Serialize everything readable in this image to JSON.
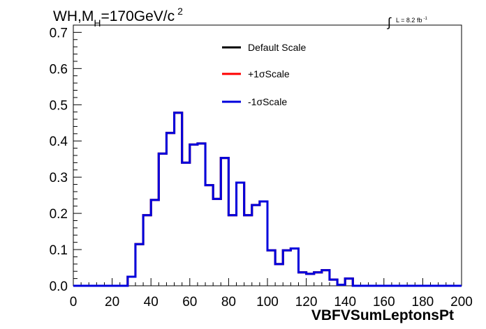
{
  "chart_data": {
    "type": "line",
    "title_main": "WH,M",
    "title_sub": "H",
    "title_rest": "=170GeV/c",
    "title_sup": "2",
    "lumi_text": "L = 8.2 fb",
    "lumi_sup": "-1",
    "xlabel": "VBFVSumLeptonsPt",
    "ylabel": "",
    "xlim": [
      0,
      200
    ],
    "ylim": [
      0,
      0.72
    ],
    "xticks": [
      "0",
      "20",
      "40",
      "60",
      "80",
      "100",
      "120",
      "140",
      "160",
      "180",
      "200"
    ],
    "yticks": [
      "0.0",
      "0.1",
      "0.2",
      "0.3",
      "0.4",
      "0.5",
      "0.6",
      "0.7"
    ],
    "bin_width": 4,
    "bin_edges_start": 0,
    "legend_position": "top-center",
    "series": [
      {
        "name": "Default Scale",
        "color": "#000000",
        "values": [
          0,
          0,
          0,
          0,
          0,
          0,
          0,
          0.025,
          0.115,
          0.195,
          0.237,
          0.365,
          0.422,
          0.478,
          0.34,
          0.39,
          0.393,
          0.278,
          0.24,
          0.353,
          0.195,
          0.285,
          0.195,
          0.223,
          0.233,
          0.098,
          0.06,
          0.098,
          0.103,
          0.037,
          0.033,
          0.037,
          0.043,
          0.017,
          0.003,
          0.02,
          0,
          0,
          0,
          0,
          0,
          0,
          0,
          0,
          0,
          0,
          0,
          0,
          0,
          0
        ]
      },
      {
        "name": "+1σScale",
        "color": "#ff0000",
        "values": [
          0,
          0,
          0,
          0,
          0,
          0,
          0,
          0.025,
          0.115,
          0.195,
          0.237,
          0.365,
          0.422,
          0.478,
          0.34,
          0.39,
          0.393,
          0.278,
          0.24,
          0.353,
          0.195,
          0.285,
          0.195,
          0.223,
          0.233,
          0.098,
          0.06,
          0.098,
          0.103,
          0.037,
          0.033,
          0.037,
          0.043,
          0.017,
          0.003,
          0.02,
          0,
          0,
          0,
          0,
          0,
          0,
          0,
          0,
          0,
          0,
          0,
          0,
          0,
          0
        ]
      },
      {
        "name": "-1σScale",
        "color": "#0000dd",
        "values": [
          0,
          0,
          0,
          0,
          0,
          0,
          0,
          0.025,
          0.115,
          0.195,
          0.237,
          0.365,
          0.422,
          0.478,
          0.34,
          0.39,
          0.393,
          0.278,
          0.24,
          0.353,
          0.195,
          0.285,
          0.195,
          0.223,
          0.233,
          0.098,
          0.06,
          0.098,
          0.103,
          0.037,
          0.033,
          0.037,
          0.043,
          0.017,
          0.003,
          0.02,
          0,
          0,
          0,
          0,
          0,
          0,
          0,
          0,
          0,
          0,
          0,
          0,
          0,
          0
        ]
      }
    ]
  }
}
